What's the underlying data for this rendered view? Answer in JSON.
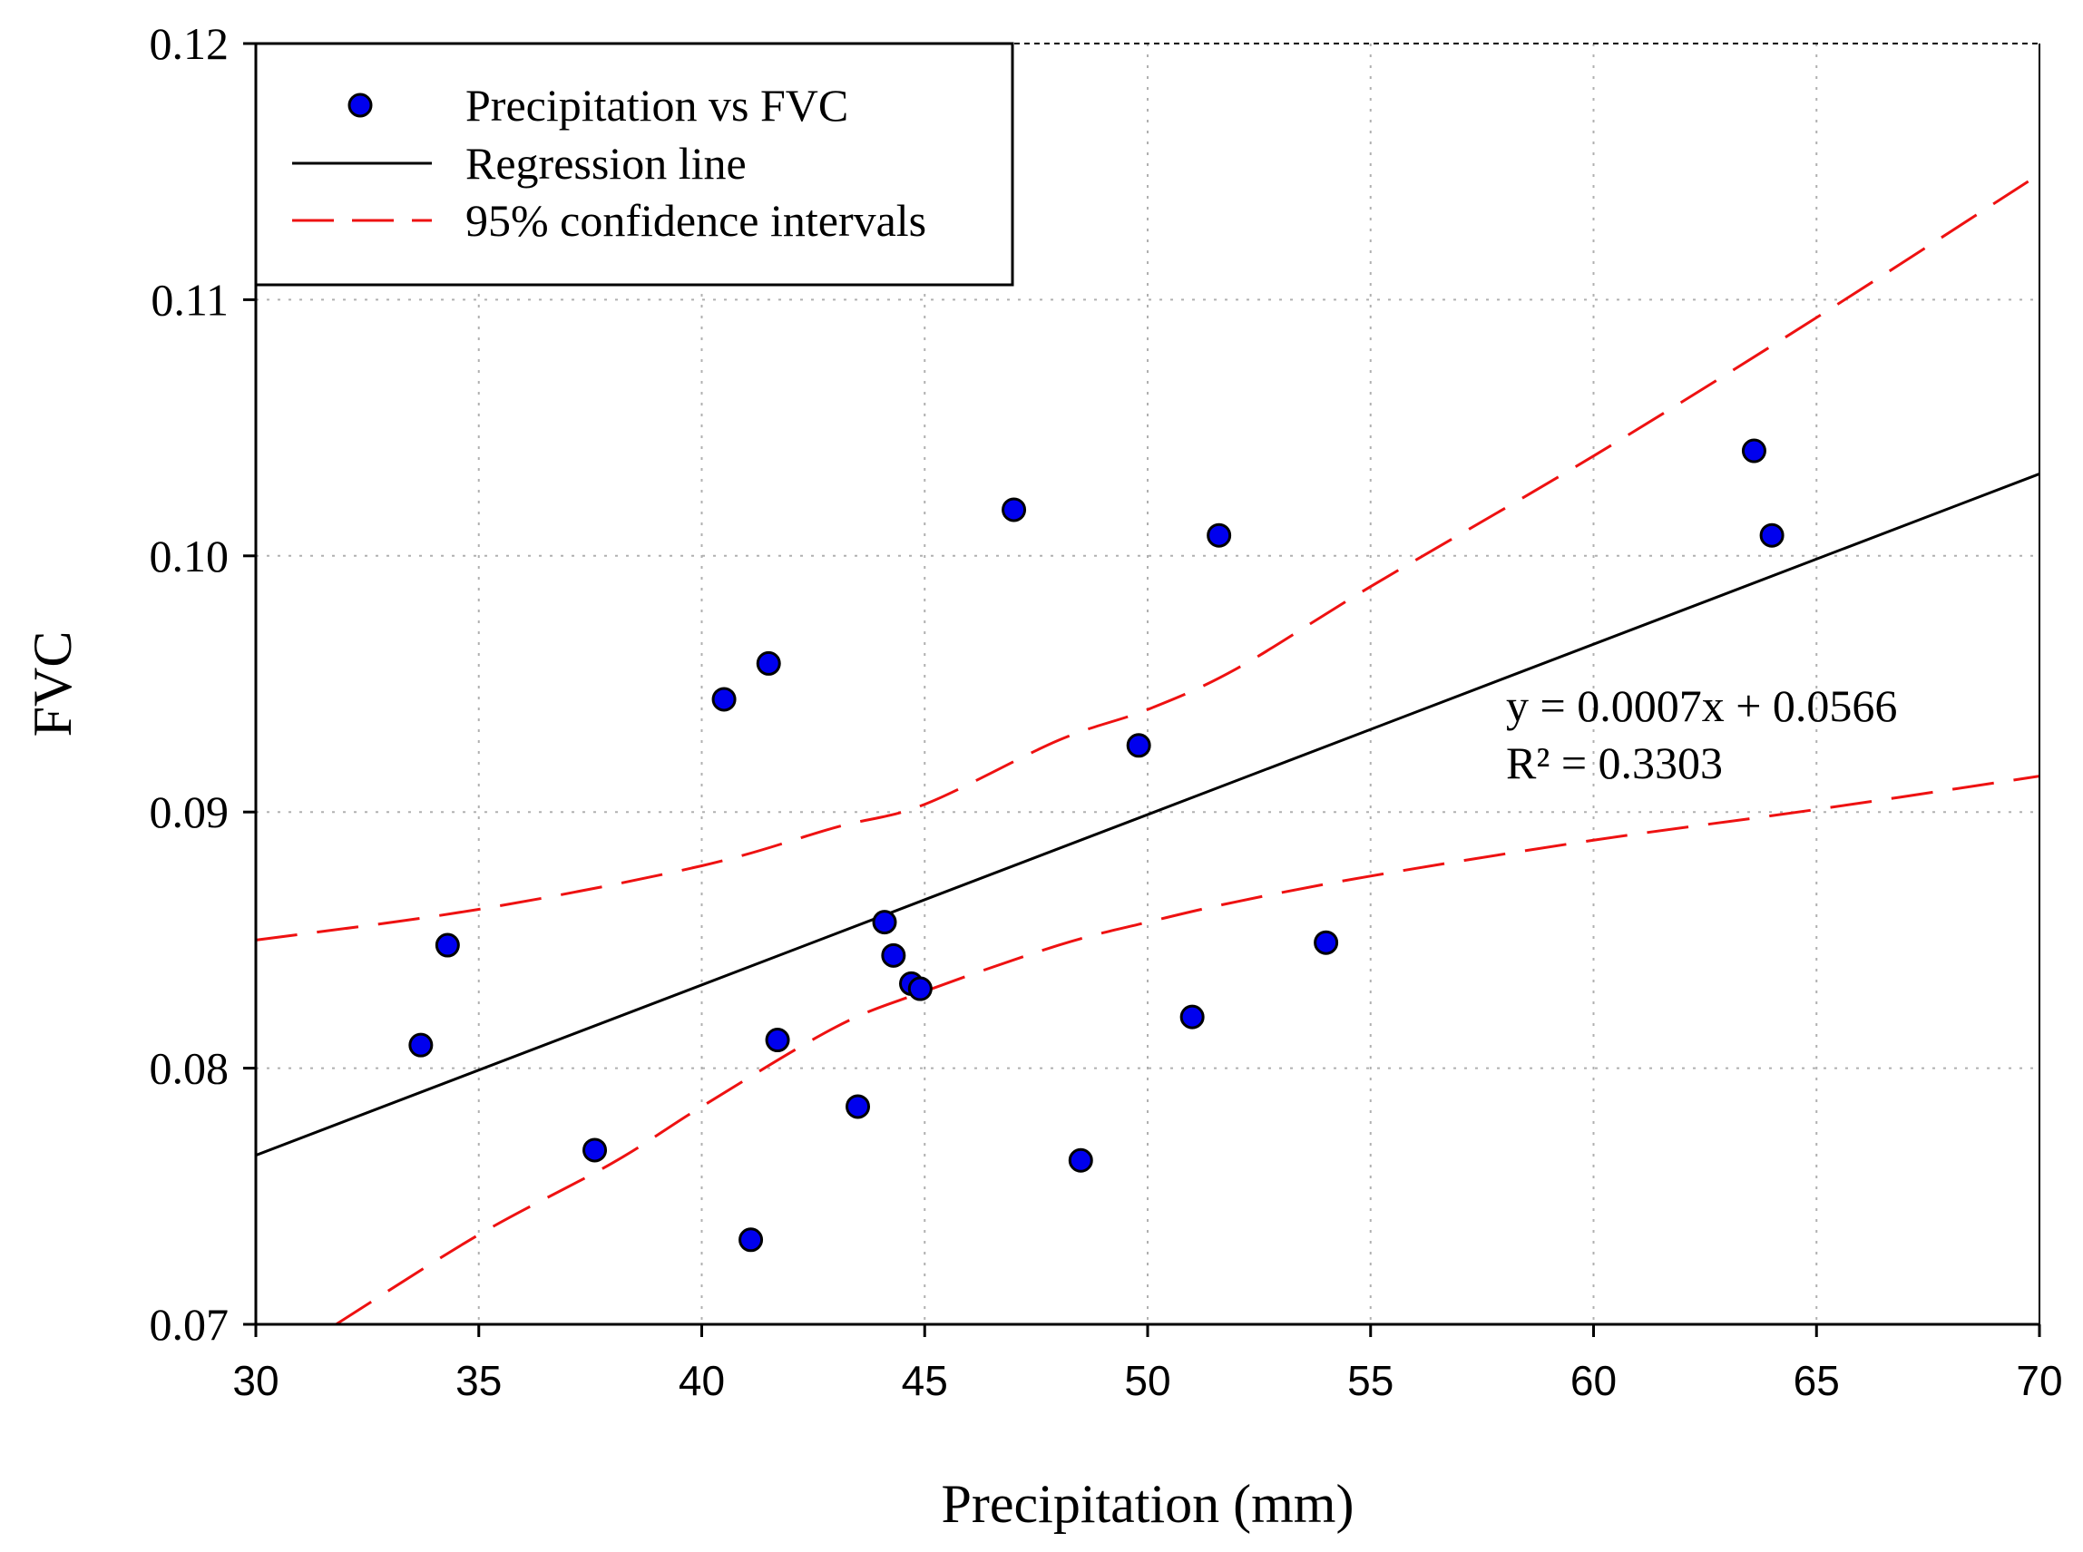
{
  "chart_data": {
    "type": "scatter",
    "xlabel": "Precipitation (mm)",
    "ylabel": "FVC",
    "xlim": [
      30,
      70
    ],
    "ylim": [
      0.07,
      0.12
    ],
    "x_ticks": [
      "30",
      "35",
      "40",
      "45",
      "50",
      "55",
      "60",
      "65",
      "70"
    ],
    "y_ticks": [
      "0.07",
      "0.08",
      "0.09",
      "0.10",
      "0.11",
      "0.12"
    ],
    "grid": true,
    "legend_position": "top-left",
    "legend": {
      "points_label": "Precipitation vs FVC",
      "regression_label": "Regression line",
      "ci_label": "95% confidence intervals"
    },
    "equation": "y = 0.0007x + 0.0566",
    "r_squared": "R² = 0.3303",
    "points": [
      {
        "x": 33.7,
        "y": 0.0809
      },
      {
        "x": 34.3,
        "y": 0.0848
      },
      {
        "x": 37.6,
        "y": 0.0768
      },
      {
        "x": 40.5,
        "y": 0.0944
      },
      {
        "x": 41.1,
        "y": 0.0733
      },
      {
        "x": 41.5,
        "y": 0.0958
      },
      {
        "x": 41.7,
        "y": 0.0811
      },
      {
        "x": 43.5,
        "y": 0.0785
      },
      {
        "x": 44.1,
        "y": 0.0857
      },
      {
        "x": 44.3,
        "y": 0.0844
      },
      {
        "x": 44.7,
        "y": 0.0833
      },
      {
        "x": 44.9,
        "y": 0.0831
      },
      {
        "x": 47.0,
        "y": 0.1018
      },
      {
        "x": 48.5,
        "y": 0.0764
      },
      {
        "x": 49.8,
        "y": 0.0926
      },
      {
        "x": 51.0,
        "y": 0.082
      },
      {
        "x": 51.6,
        "y": 0.1008
      },
      {
        "x": 54.0,
        "y": 0.0849
      },
      {
        "x": 63.6,
        "y": 0.1041
      },
      {
        "x": 64.0,
        "y": 0.1008
      }
    ],
    "regression": [
      {
        "x": 30,
        "y": 0.0766
      },
      {
        "x": 70,
        "y": 0.1032
      }
    ],
    "ci_upper": [
      {
        "x": 30,
        "y": 0.085
      },
      {
        "x": 35,
        "y": 0.0862
      },
      {
        "x": 40,
        "y": 0.0879
      },
      {
        "x": 43,
        "y": 0.0894
      },
      {
        "x": 45,
        "y": 0.0903
      },
      {
        "x": 48,
        "y": 0.0928
      },
      {
        "x": 50,
        "y": 0.094
      },
      {
        "x": 52,
        "y": 0.0956
      },
      {
        "x": 55,
        "y": 0.0988
      },
      {
        "x": 60,
        "y": 0.1039
      },
      {
        "x": 65,
        "y": 0.1093
      },
      {
        "x": 70,
        "y": 0.1149
      }
    ],
    "ci_lower": [
      {
        "x": 31.8,
        "y": 0.07
      },
      {
        "x": 35,
        "y": 0.0735
      },
      {
        "x": 38,
        "y": 0.0763
      },
      {
        "x": 40,
        "y": 0.0785
      },
      {
        "x": 43,
        "y": 0.0816
      },
      {
        "x": 45,
        "y": 0.083
      },
      {
        "x": 48,
        "y": 0.0848
      },
      {
        "x": 50,
        "y": 0.0857
      },
      {
        "x": 52,
        "y": 0.0865
      },
      {
        "x": 55,
        "y": 0.0875
      },
      {
        "x": 60,
        "y": 0.0889
      },
      {
        "x": 65,
        "y": 0.0901
      },
      {
        "x": 70,
        "y": 0.0914
      }
    ],
    "colors": {
      "points": "#0000ee",
      "regression": "#000000",
      "ci": "#ee1111",
      "grid": "#b0b0b0"
    }
  }
}
